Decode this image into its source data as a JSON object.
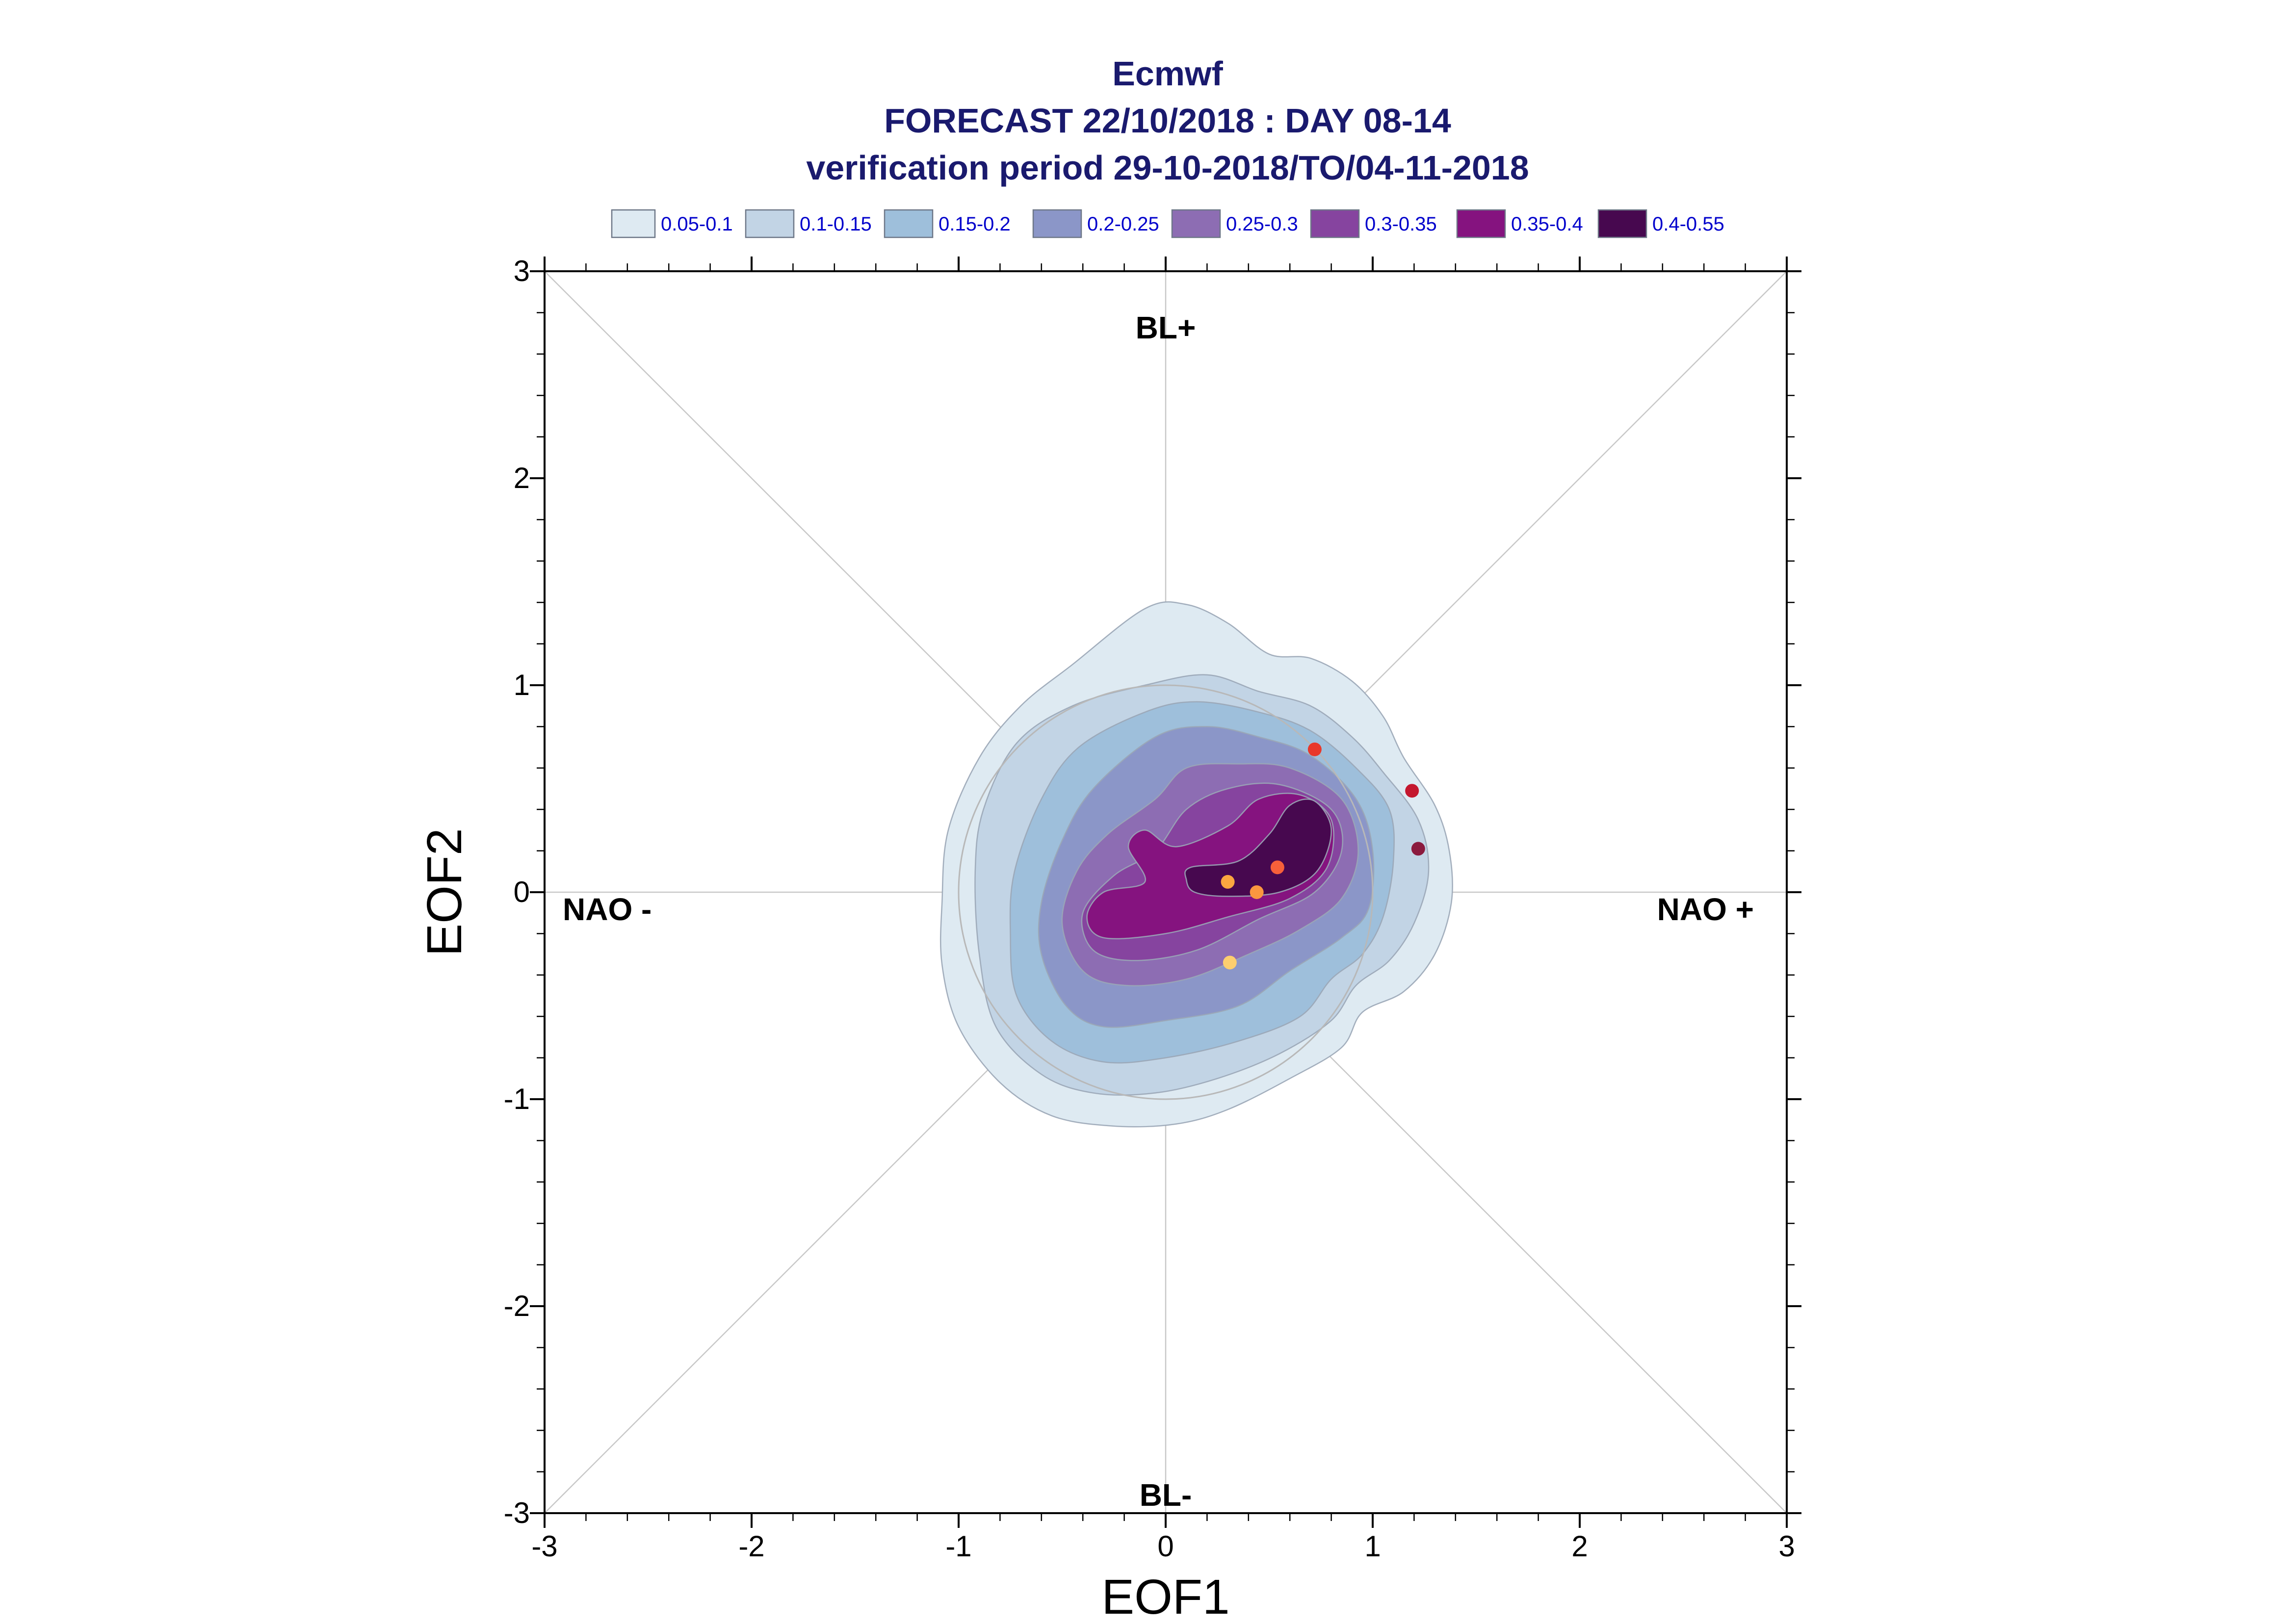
{
  "chart_data": {
    "type": "contour",
    "title_lines": [
      "Ecmwf",
      "FORECAST 22/10/2018 : DAY 08-14",
      "verification period 29-10-2018/TO/04-11-2018"
    ],
    "xlabel": "EOF1",
    "ylabel": "EOF2",
    "xlim": [
      -3,
      3
    ],
    "ylim": [
      -3,
      3
    ],
    "xticks": [
      "-3",
      "-2",
      "-1",
      "0",
      "1",
      "2",
      "3"
    ],
    "yticks": [
      "-3",
      "-2",
      "-1",
      "0",
      "1",
      "2",
      "3"
    ],
    "regime_labels": {
      "top": "BL+",
      "bottom": "BL-",
      "left": "NAO -",
      "right": "NAO +"
    },
    "legend_position": "top",
    "reference_circle_radius": 1.0,
    "levels": [
      {
        "label": "0.05-0.1",
        "color": "#deeaf2"
      },
      {
        "label": "0.1-0.15",
        "color": "#c2d4e5"
      },
      {
        "label": "0.15-0.2",
        "color": "#9ebfdb"
      },
      {
        "label": "0.2-0.25",
        "color": "#8b96c8"
      },
      {
        "label": "0.25-0.3",
        "color": "#8d6db3"
      },
      {
        "label": "0.3-0.35",
        "color": "#86449f"
      },
      {
        "label": "0.35-0.4",
        "color": "#85137f"
      },
      {
        "label": "0.4-0.55",
        "color": "#47084f"
      }
    ],
    "contours": [
      {
        "level": 0,
        "points": [
          [
            -0.1,
            1.37
          ],
          [
            0.1,
            1.39
          ],
          [
            0.3,
            1.3
          ],
          [
            0.5,
            1.15
          ],
          [
            0.7,
            1.13
          ],
          [
            0.9,
            1.02
          ],
          [
            1.05,
            0.85
          ],
          [
            1.15,
            0.65
          ],
          [
            1.3,
            0.42
          ],
          [
            1.37,
            0.2
          ],
          [
            1.38,
            -0.05
          ],
          [
            1.3,
            -0.3
          ],
          [
            1.15,
            -0.48
          ],
          [
            0.95,
            -0.58
          ],
          [
            0.85,
            -0.75
          ],
          [
            0.6,
            -0.9
          ],
          [
            0.3,
            -1.05
          ],
          [
            0.05,
            -1.12
          ],
          [
            -0.25,
            -1.13
          ],
          [
            -0.55,
            -1.08
          ],
          [
            -0.8,
            -0.92
          ],
          [
            -1.0,
            -0.65
          ],
          [
            -1.08,
            -0.35
          ],
          [
            -1.08,
            -0.05
          ],
          [
            -1.05,
            0.3
          ],
          [
            -0.9,
            0.65
          ],
          [
            -0.7,
            0.9
          ],
          [
            -0.45,
            1.1
          ]
        ]
      },
      {
        "level": 1,
        "points": [
          [
            -0.1,
            1.0
          ],
          [
            0.2,
            1.05
          ],
          [
            0.45,
            0.97
          ],
          [
            0.7,
            0.9
          ],
          [
            0.9,
            0.75
          ],
          [
            1.05,
            0.58
          ],
          [
            1.22,
            0.35
          ],
          [
            1.27,
            0.1
          ],
          [
            1.2,
            -0.15
          ],
          [
            1.08,
            -0.33
          ],
          [
            0.92,
            -0.45
          ],
          [
            0.8,
            -0.62
          ],
          [
            0.55,
            -0.78
          ],
          [
            0.25,
            -0.9
          ],
          [
            -0.05,
            -0.97
          ],
          [
            -0.35,
            -0.97
          ],
          [
            -0.6,
            -0.88
          ],
          [
            -0.82,
            -0.65
          ],
          [
            -0.9,
            -0.3
          ],
          [
            -0.92,
            0.1
          ],
          [
            -0.88,
            0.4
          ],
          [
            -0.72,
            0.72
          ],
          [
            -0.45,
            0.9
          ]
        ]
      },
      {
        "level": 2,
        "points": [
          [
            -0.1,
            0.87
          ],
          [
            0.15,
            0.92
          ],
          [
            0.45,
            0.87
          ],
          [
            0.7,
            0.78
          ],
          [
            0.92,
            0.6
          ],
          [
            1.08,
            0.4
          ],
          [
            1.1,
            0.15
          ],
          [
            1.05,
            -0.12
          ],
          [
            0.95,
            -0.3
          ],
          [
            0.8,
            -0.42
          ],
          [
            0.65,
            -0.6
          ],
          [
            0.35,
            -0.72
          ],
          [
            0.0,
            -0.8
          ],
          [
            -0.3,
            -0.82
          ],
          [
            -0.55,
            -0.72
          ],
          [
            -0.72,
            -0.5
          ],
          [
            -0.75,
            -0.2
          ],
          [
            -0.73,
            0.1
          ],
          [
            -0.6,
            0.45
          ],
          [
            -0.42,
            0.7
          ]
        ]
      },
      {
        "level": 3,
        "points": [
          [
            -0.05,
            0.75
          ],
          [
            0.2,
            0.8
          ],
          [
            0.45,
            0.75
          ],
          [
            0.7,
            0.66
          ],
          [
            0.92,
            0.45
          ],
          [
            1.0,
            0.2
          ],
          [
            0.98,
            -0.08
          ],
          [
            0.85,
            -0.22
          ],
          [
            0.6,
            -0.38
          ],
          [
            0.35,
            -0.55
          ],
          [
            0.0,
            -0.62
          ],
          [
            -0.3,
            -0.65
          ],
          [
            -0.48,
            -0.55
          ],
          [
            -0.6,
            -0.3
          ],
          [
            -0.6,
            -0.05
          ],
          [
            -0.5,
            0.25
          ],
          [
            -0.35,
            0.5
          ]
        ]
      },
      {
        "level": 4,
        "points": [
          [
            0.1,
            0.6
          ],
          [
            0.35,
            0.62
          ],
          [
            0.6,
            0.6
          ],
          [
            0.85,
            0.45
          ],
          [
            0.93,
            0.2
          ],
          [
            0.85,
            -0.03
          ],
          [
            0.65,
            -0.18
          ],
          [
            0.4,
            -0.3
          ],
          [
            0.1,
            -0.42
          ],
          [
            -0.2,
            -0.45
          ],
          [
            -0.4,
            -0.38
          ],
          [
            -0.5,
            -0.15
          ],
          [
            -0.43,
            0.1
          ],
          [
            -0.28,
            0.28
          ],
          [
            -0.05,
            0.45
          ]
        ]
      },
      {
        "level": 5,
        "points": [
          [
            0.3,
            0.5
          ],
          [
            0.55,
            0.52
          ],
          [
            0.8,
            0.4
          ],
          [
            0.85,
            0.2
          ],
          [
            0.72,
            0.0
          ],
          [
            0.45,
            -0.13
          ],
          [
            0.15,
            -0.28
          ],
          [
            -0.15,
            -0.33
          ],
          [
            -0.35,
            -0.28
          ],
          [
            -0.4,
            -0.1
          ],
          [
            -0.25,
            0.08
          ],
          [
            -0.05,
            0.2
          ],
          [
            0.1,
            0.4
          ]
        ]
      },
      {
        "level": 6,
        "points": [
          [
            0.05,
            0.22
          ],
          [
            0.3,
            0.32
          ],
          [
            0.45,
            0.45
          ],
          [
            0.65,
            0.47
          ],
          [
            0.8,
            0.35
          ],
          [
            0.78,
            0.12
          ],
          [
            0.6,
            -0.03
          ],
          [
            0.3,
            -0.12
          ],
          [
            0.0,
            -0.2
          ],
          [
            -0.3,
            -0.22
          ],
          [
            -0.38,
            -0.12
          ],
          [
            -0.3,
            0.0
          ],
          [
            -0.1,
            0.05
          ],
          [
            -0.18,
            0.22
          ],
          [
            -0.1,
            0.3
          ]
        ]
      },
      {
        "level": 7,
        "points": [
          [
            0.12,
            0.12
          ],
          [
            0.35,
            0.15
          ],
          [
            0.5,
            0.28
          ],
          [
            0.6,
            0.42
          ],
          [
            0.72,
            0.44
          ],
          [
            0.8,
            0.3
          ],
          [
            0.73,
            0.1
          ],
          [
            0.55,
            0.0
          ],
          [
            0.3,
            -0.02
          ],
          [
            0.14,
            0.0
          ],
          [
            0.1,
            0.06
          ]
        ]
      }
    ],
    "points": [
      {
        "x": 0.72,
        "y": 0.69,
        "color": "#e8382b"
      },
      {
        "x": 1.19,
        "y": 0.49,
        "color": "#c4172e"
      },
      {
        "x": 1.22,
        "y": 0.21,
        "color": "#8b1a3e"
      },
      {
        "x": 0.54,
        "y": 0.12,
        "color": "#f6603a"
      },
      {
        "x": 0.3,
        "y": 0.05,
        "color": "#fba640"
      },
      {
        "x": 0.44,
        "y": 0.0,
        "color": "#fb9740"
      },
      {
        "x": 0.31,
        "y": -0.34,
        "color": "#fdce6f"
      }
    ]
  }
}
